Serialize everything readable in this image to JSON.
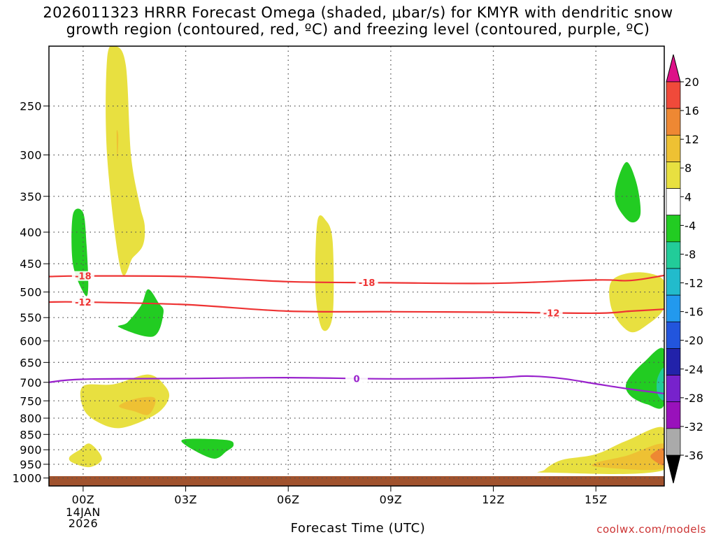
{
  "title_line1": "2026011323 HRRR Forecast Omega (shaded, μbar/s) for KMYR with dendritic snow",
  "title_line2": "growth region (contoured, red, ºC) and freezing level (contoured, purple, ºC)",
  "credit": "coolwx.com/models",
  "chart_data": {
    "type": "time-height cross section",
    "xlabel": "Forecast Time (UTC)",
    "x_ticks": [
      "00Z",
      "03Z",
      "06Z",
      "09Z",
      "12Z",
      "15Z"
    ],
    "x_tick_hours": [
      0,
      3,
      6,
      9,
      12,
      15
    ],
    "x_sublabel": [
      "14JAN",
      "2026"
    ],
    "xlim_hours": [
      -1,
      17
    ],
    "y_ticks": [
      250,
      300,
      350,
      400,
      450,
      500,
      550,
      600,
      650,
      700,
      750,
      800,
      850,
      900,
      950,
      1000
    ],
    "ylim_hpa": [
      200,
      1030
    ],
    "grid": true,
    "colorbar": {
      "labels": [
        "20",
        "16",
        "12",
        "8",
        "4",
        "-4",
        "-8",
        "-12",
        "-16",
        "-20",
        "-24",
        "-28",
        "-32",
        "-36"
      ],
      "colors": [
        "#ff3355",
        "#f04a3a",
        "#ee8833",
        "#eec133",
        "#e8e040",
        "#ffffff",
        "#22cc22",
        "#22cc99",
        "#22bbcc",
        "#2299ee",
        "#2255dd",
        "#2222aa",
        "#7722cc",
        "#9911bb",
        "#aaaaaa"
      ],
      "top_arrow_color": "#dd1188",
      "bottom_arrow_color": "#000000"
    },
    "contours": [
      {
        "label": "-18",
        "color": "#ee3333",
        "hours": [
          -1,
          0,
          3,
          6,
          9,
          12,
          15,
          16,
          17
        ],
        "hpa": [
          472,
          471,
          472,
          481,
          483,
          484,
          478,
          479,
          470
        ]
      },
      {
        "label": "-12",
        "color": "#ee3333",
        "hours": [
          -1,
          0,
          3,
          6,
          9,
          12,
          15,
          16,
          17
        ],
        "hpa": [
          519,
          519,
          524,
          537,
          538,
          539,
          541,
          537,
          533
        ]
      },
      {
        "label": "0",
        "color": "#9922cc",
        "hours": [
          -1,
          0,
          3,
          6,
          9,
          12,
          13,
          14,
          15,
          16,
          17
        ],
        "hpa": [
          700,
          692,
          690,
          688,
          691,
          688,
          684,
          690,
          704,
          718,
          730
        ]
      }
    ],
    "shaded_regions": [
      {
        "value": "4 to 8",
        "color": "#e8e040",
        "points": [
          [
            0.7,
            210
          ],
          [
            0.95,
            200
          ],
          [
            1.25,
            215
          ],
          [
            1.4,
            300
          ],
          [
            1.65,
            360
          ],
          [
            1.8,
            390
          ],
          [
            1.75,
            420
          ],
          [
            1.45,
            440
          ],
          [
            1.1,
            460
          ],
          [
            0.7,
            300
          ]
        ]
      },
      {
        "value": "8 to 12",
        "color": "#eec133",
        "points": [
          [
            0.98,
            275
          ],
          [
            1.0,
            305
          ],
          [
            1.03,
            280
          ]
        ]
      },
      {
        "value": "-4 to -8",
        "color": "#22cc22",
        "points": [
          [
            -0.3,
            375
          ],
          [
            0.0,
            372
          ],
          [
            0.1,
            420
          ],
          [
            0.15,
            490
          ],
          [
            0.05,
            505
          ],
          [
            -0.3,
            450
          ]
        ]
      },
      {
        "value": "-4 to -8",
        "color": "#22cc22",
        "points": [
          [
            1.3,
            560
          ],
          [
            1.7,
            525
          ],
          [
            1.9,
            495
          ],
          [
            2.2,
            520
          ],
          [
            2.35,
            540
          ],
          [
            2.05,
            590
          ],
          [
            1.05,
            570
          ]
        ]
      },
      {
        "value": "4 to 8",
        "color": "#e8e040",
        "points": [
          [
            0.0,
            710
          ],
          [
            0.9,
            705
          ],
          [
            1.9,
            680
          ],
          [
            2.4,
            710
          ],
          [
            2.5,
            745
          ],
          [
            2.1,
            790
          ],
          [
            1.1,
            830
          ],
          [
            0.4,
            810
          ],
          [
            0.0,
            770
          ]
        ]
      },
      {
        "value": "8 to 12",
        "color": "#eec133",
        "points": [
          [
            1.05,
            765
          ],
          [
            1.5,
            745
          ],
          [
            2.05,
            740
          ],
          [
            2.1,
            760
          ],
          [
            1.9,
            790
          ],
          [
            1.5,
            780
          ]
        ]
      },
      {
        "value": "4 to 8",
        "color": "#e8e040",
        "points": [
          [
            -0.4,
            925
          ],
          [
            -0.1,
            900
          ],
          [
            0.2,
            880
          ],
          [
            0.55,
            930
          ],
          [
            0.2,
            960
          ],
          [
            -0.3,
            945
          ]
        ]
      },
      {
        "value": "-4 to -8",
        "color": "#22cc22",
        "points": [
          [
            3.0,
            865
          ],
          [
            4.2,
            868
          ],
          [
            4.4,
            885
          ],
          [
            4.2,
            905
          ],
          [
            3.8,
            930
          ],
          [
            3.0,
            885
          ]
        ]
      },
      {
        "value": "4 to 8",
        "color": "#e8e040",
        "points": [
          [
            6.85,
            385
          ],
          [
            7.1,
            383
          ],
          [
            7.3,
            415
          ],
          [
            7.3,
            545
          ],
          [
            7.0,
            575
          ],
          [
            6.8,
            500
          ]
        ]
      },
      {
        "value": "-4 to -8",
        "color": "#22cc22",
        "points": [
          [
            15.6,
            335
          ],
          [
            15.9,
            308
          ],
          [
            16.2,
            335
          ],
          [
            16.3,
            375
          ],
          [
            16.0,
            385
          ],
          [
            15.6,
            360
          ]
        ]
      },
      {
        "value": "4 to 8",
        "color": "#e8e040",
        "points": [
          [
            15.4,
            490
          ],
          [
            15.7,
            470
          ],
          [
            16.4,
            465
          ],
          [
            17.0,
            480
          ],
          [
            17.0,
            530
          ],
          [
            16.5,
            565
          ],
          [
            16.0,
            580
          ],
          [
            15.5,
            540
          ]
        ]
      },
      {
        "value": "-4 to -8",
        "color": "#22cc22",
        "points": [
          [
            15.9,
            700
          ],
          [
            16.4,
            650
          ],
          [
            17.0,
            620
          ],
          [
            17.0,
            760
          ],
          [
            16.5,
            760
          ],
          [
            16.0,
            735
          ]
        ]
      },
      {
        "value": "-8 to -12",
        "color": "#22cc99",
        "points": [
          [
            16.8,
            690
          ],
          [
            17.0,
            665
          ],
          [
            17.0,
            745
          ],
          [
            16.8,
            730
          ]
        ]
      },
      {
        "value": "4 to 8",
        "color": "#e8e040",
        "points": [
          [
            13.5,
            970
          ],
          [
            14.0,
            935
          ],
          [
            15.0,
            915
          ],
          [
            15.9,
            870
          ],
          [
            17.0,
            830
          ],
          [
            17.0,
            970
          ],
          [
            13.6,
            980
          ]
        ]
      },
      {
        "value": "8 to 12",
        "color": "#eec133",
        "points": [
          [
            15.0,
            945
          ],
          [
            15.9,
            920
          ],
          [
            17.0,
            880
          ],
          [
            17.0,
            965
          ],
          [
            15.1,
            960
          ]
        ]
      },
      {
        "value": "12 to 16",
        "color": "#ee8833",
        "points": [
          [
            16.6,
            920
          ],
          [
            17.0,
            895
          ],
          [
            17.0,
            950
          ],
          [
            16.8,
            945
          ]
        ]
      }
    ]
  }
}
